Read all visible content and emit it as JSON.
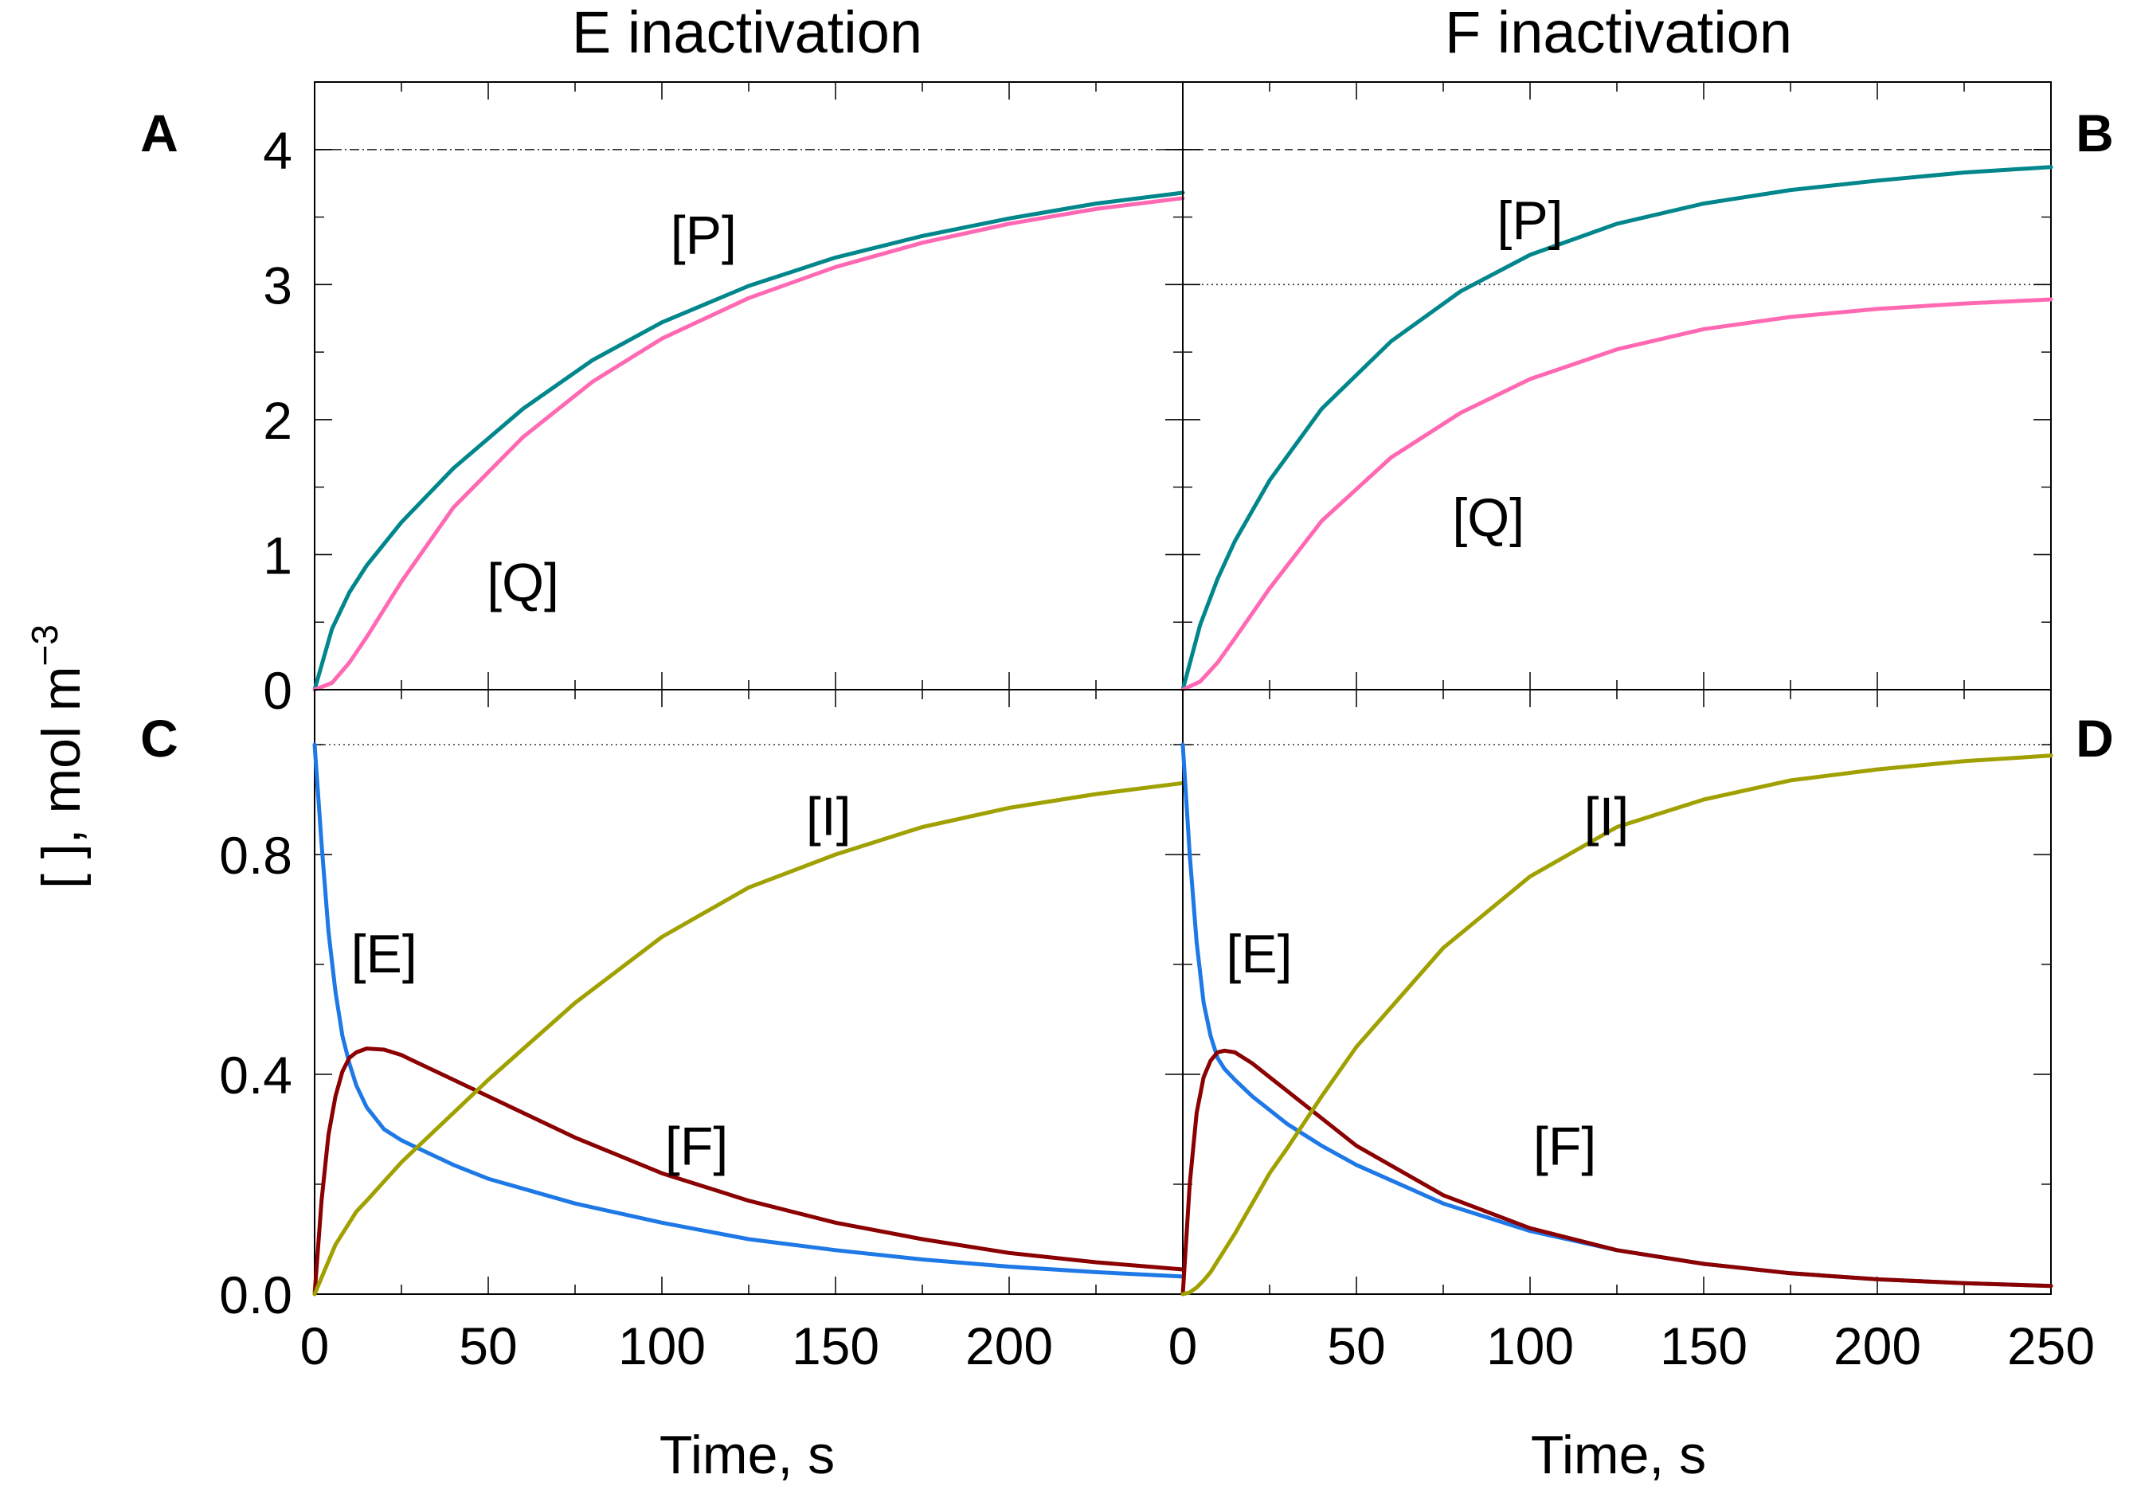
{
  "figure": {
    "col_titles": [
      "E inactivation",
      "F inactivation"
    ],
    "ylabel_text": "[  ], mol m",
    "ylabel_sup": "−3",
    "xlabels": [
      "Time, s",
      "Time, s"
    ]
  },
  "chart_data": [
    {
      "panel": "A",
      "type": "line",
      "title": "E inactivation",
      "xlabel": "Time, s",
      "ylabel": "[ ], mol m−3",
      "xlim": [
        0,
        250
      ],
      "ylim": [
        0,
        4.5
      ],
      "yticks": [
        "0",
        "1",
        "2",
        "3",
        "4"
      ],
      "grid": false,
      "reference_lines": [
        {
          "y": 4,
          "style": "dash-dot"
        }
      ],
      "series": [
        {
          "name": "[P]",
          "color": "#00868B",
          "x": [
            0,
            5,
            10,
            15,
            25,
            40,
            60,
            80,
            100,
            125,
            150,
            175,
            200,
            225,
            250
          ],
          "y": [
            0,
            0.45,
            0.72,
            0.92,
            1.24,
            1.64,
            2.08,
            2.44,
            2.72,
            2.99,
            3.2,
            3.36,
            3.49,
            3.6,
            3.68
          ]
        },
        {
          "name": "[Q]",
          "color": "#FF69B4",
          "x": [
            0,
            5,
            10,
            15,
            25,
            40,
            60,
            80,
            100,
            125,
            150,
            175,
            200,
            225,
            250
          ],
          "y": [
            0,
            0.05,
            0.2,
            0.39,
            0.8,
            1.35,
            1.87,
            2.28,
            2.6,
            2.9,
            3.13,
            3.31,
            3.45,
            3.56,
            3.64
          ]
        }
      ],
      "annotations": [
        {
          "text": "[P]",
          "x": 112,
          "y": 3.37
        },
        {
          "text": "[Q]",
          "x": 60,
          "y": 0.8
        }
      ]
    },
    {
      "panel": "B",
      "type": "line",
      "title": "F inactivation",
      "xlabel": "Time, s",
      "ylabel": "",
      "xlim": [
        0,
        250
      ],
      "ylim": [
        0,
        4.5
      ],
      "grid": false,
      "reference_lines": [
        {
          "y": 4,
          "style": "dash"
        },
        {
          "y": 3,
          "style": "dot"
        }
      ],
      "series": [
        {
          "name": "[P]",
          "color": "#00868B",
          "x": [
            0,
            5,
            10,
            15,
            25,
            40,
            60,
            80,
            100,
            125,
            150,
            175,
            200,
            225,
            250
          ],
          "y": [
            0,
            0.48,
            0.82,
            1.1,
            1.55,
            2.08,
            2.58,
            2.95,
            3.22,
            3.45,
            3.6,
            3.7,
            3.77,
            3.83,
            3.87
          ]
        },
        {
          "name": "[Q]",
          "color": "#FF69B4",
          "x": [
            0,
            5,
            10,
            15,
            25,
            40,
            60,
            80,
            100,
            125,
            150,
            175,
            200,
            225,
            250
          ],
          "y": [
            0,
            0.06,
            0.2,
            0.38,
            0.75,
            1.25,
            1.72,
            2.05,
            2.3,
            2.52,
            2.67,
            2.76,
            2.82,
            2.86,
            2.89
          ]
        }
      ],
      "annotations": [
        {
          "text": "[P]",
          "x": 100,
          "y": 3.48
        },
        {
          "text": "[Q]",
          "x": 88,
          "y": 1.28
        }
      ]
    },
    {
      "panel": "C",
      "type": "line",
      "xlabel": "Time, s",
      "ylabel": "[ ], mol m−3",
      "xlim": [
        0,
        250
      ],
      "ylim": [
        0,
        1.1
      ],
      "xticks": [
        "0",
        "50",
        "100",
        "150",
        "200"
      ],
      "yticks": [
        "0.0",
        "0.4",
        "0.8"
      ],
      "grid": false,
      "reference_lines": [
        {
          "y": 1.0,
          "style": "dot"
        }
      ],
      "series": [
        {
          "name": "[E]",
          "color": "#1E78E6",
          "x": [
            0,
            2,
            4,
            6,
            8,
            10,
            12,
            15,
            20,
            25,
            30,
            40,
            50,
            75,
            100,
            125,
            150,
            175,
            200,
            225,
            250
          ],
          "y": [
            1.0,
            0.82,
            0.66,
            0.55,
            0.47,
            0.42,
            0.38,
            0.34,
            0.3,
            0.28,
            0.265,
            0.235,
            0.21,
            0.165,
            0.13,
            0.1,
            0.08,
            0.063,
            0.05,
            0.04,
            0.032
          ]
        },
        {
          "name": "[F]",
          "color": "#8B0000",
          "x": [
            0,
            2,
            4,
            6,
            8,
            10,
            12,
            15,
            20,
            25,
            30,
            40,
            50,
            75,
            100,
            125,
            150,
            175,
            200,
            225,
            250
          ],
          "y": [
            0,
            0.17,
            0.29,
            0.36,
            0.405,
            0.43,
            0.44,
            0.447,
            0.445,
            0.435,
            0.42,
            0.39,
            0.36,
            0.285,
            0.22,
            0.17,
            0.13,
            0.1,
            0.075,
            0.058,
            0.045
          ]
        },
        {
          "name": "[I]",
          "color": "#A0A000",
          "x": [
            0,
            2,
            4,
            6,
            8,
            10,
            12,
            15,
            20,
            25,
            30,
            40,
            50,
            75,
            100,
            125,
            150,
            175,
            200,
            225,
            250
          ],
          "y": [
            0,
            0.03,
            0.06,
            0.09,
            0.11,
            0.13,
            0.15,
            0.17,
            0.205,
            0.24,
            0.27,
            0.33,
            0.39,
            0.53,
            0.65,
            0.74,
            0.8,
            0.85,
            0.885,
            0.91,
            0.93
          ]
        }
      ],
      "annotations": [
        {
          "text": "[E]",
          "x": 20,
          "y": 0.62
        },
        {
          "text": "[F]",
          "x": 110,
          "y": 0.27
        },
        {
          "text": "[I]",
          "x": 148,
          "y": 0.87
        }
      ]
    },
    {
      "panel": "D",
      "type": "line",
      "xlabel": "Time, s",
      "ylabel": "",
      "xlim": [
        0,
        250
      ],
      "ylim": [
        0,
        1.1
      ],
      "xticks": [
        "0",
        "50",
        "100",
        "150",
        "200",
        "250"
      ],
      "grid": false,
      "reference_lines": [
        {
          "y": 1.0,
          "style": "dot"
        }
      ],
      "series": [
        {
          "name": "[E]",
          "color": "#1E78E6",
          "x": [
            0,
            2,
            4,
            6,
            8,
            10,
            12,
            15,
            20,
            25,
            30,
            40,
            50,
            75,
            100,
            125,
            150,
            175,
            200,
            225,
            250
          ],
          "y": [
            1.0,
            0.8,
            0.64,
            0.53,
            0.47,
            0.43,
            0.41,
            0.39,
            0.36,
            0.335,
            0.31,
            0.27,
            0.235,
            0.165,
            0.115,
            0.08,
            0.055,
            0.038,
            0.027,
            0.02,
            0.015
          ]
        },
        {
          "name": "[F]",
          "color": "#8B0000",
          "x": [
            0,
            2,
            4,
            6,
            8,
            10,
            12,
            15,
            20,
            25,
            30,
            40,
            50,
            75,
            100,
            125,
            150,
            175,
            200,
            225,
            250
          ],
          "y": [
            0,
            0.2,
            0.33,
            0.395,
            0.425,
            0.44,
            0.443,
            0.44,
            0.42,
            0.395,
            0.37,
            0.32,
            0.27,
            0.18,
            0.12,
            0.08,
            0.055,
            0.038,
            0.027,
            0.02,
            0.015
          ]
        },
        {
          "name": "[I]",
          "color": "#A0A000",
          "x": [
            0,
            2,
            4,
            6,
            8,
            10,
            12,
            15,
            20,
            25,
            30,
            40,
            50,
            75,
            100,
            125,
            150,
            175,
            200,
            225,
            250
          ],
          "y": [
            0,
            0.003,
            0.012,
            0.025,
            0.04,
            0.06,
            0.08,
            0.11,
            0.165,
            0.22,
            0.265,
            0.36,
            0.45,
            0.63,
            0.76,
            0.85,
            0.9,
            0.935,
            0.955,
            0.97,
            0.98
          ]
        }
      ],
      "annotations": [
        {
          "text": "[E]",
          "x": 22,
          "y": 0.62
        },
        {
          "text": "[F]",
          "x": 110,
          "y": 0.27
        },
        {
          "text": "[I]",
          "x": 122,
          "y": 0.87
        }
      ]
    }
  ]
}
